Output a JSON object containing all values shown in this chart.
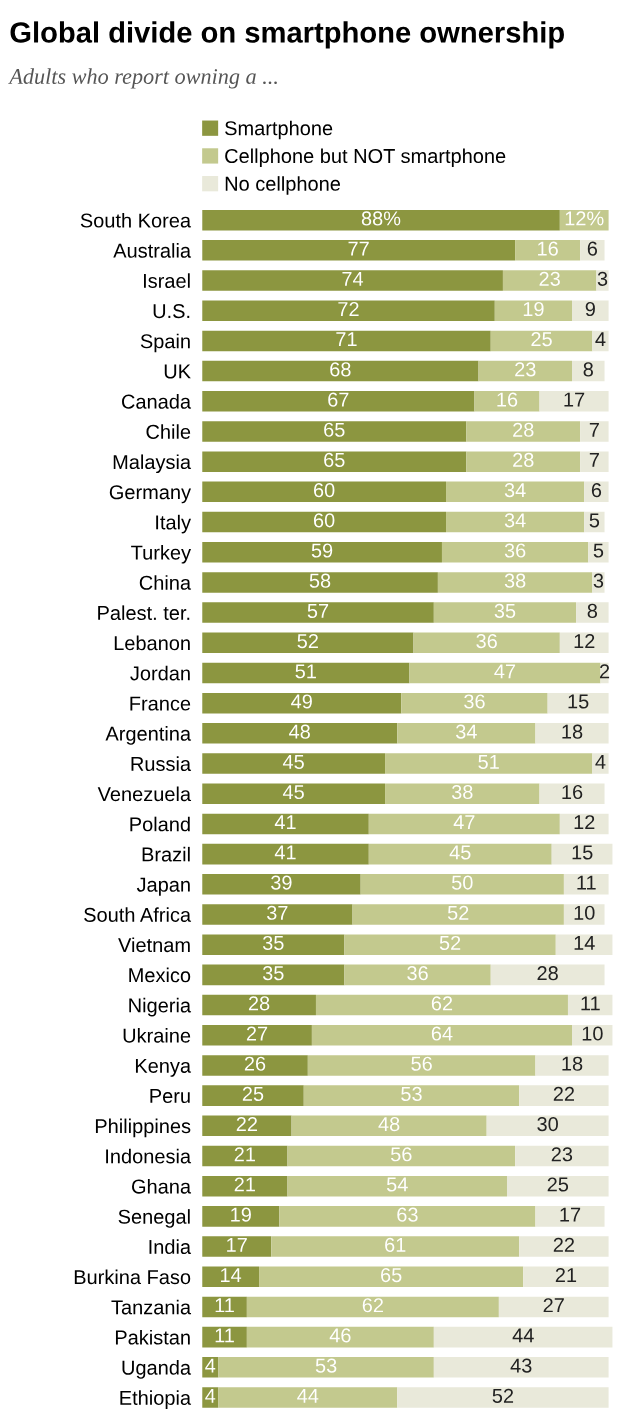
{
  "chart_data": {
    "type": "bar",
    "orientation": "horizontal",
    "stacked": true,
    "title": "Global divide on smartphone ownership",
    "subtitle": "Adults who report owning a ...",
    "categories": [
      "South Korea",
      "Australia",
      "Israel",
      "U.S.",
      "Spain",
      "UK",
      "Canada",
      "Chile",
      "Malaysia",
      "Germany",
      "Italy",
      "Turkey",
      "China",
      "Palest. ter.",
      "Lebanon",
      "Jordan",
      "France",
      "Argentina",
      "Russia",
      "Venezuela",
      "Poland",
      "Brazil",
      "Japan",
      "South Africa",
      "Vietnam",
      "Mexico",
      "Nigeria",
      "Ukraine",
      "Kenya",
      "Peru",
      "Philippines",
      "Indonesia",
      "Ghana",
      "Senegal",
      "India",
      "Burkina Faso",
      "Tanzania",
      "Pakistan",
      "Uganda",
      "Ethiopia"
    ],
    "series": [
      {
        "name": "Smartphone",
        "color": "#8c9640",
        "values": [
          88,
          77,
          74,
          72,
          71,
          68,
          67,
          65,
          65,
          60,
          60,
          59,
          58,
          57,
          52,
          51,
          49,
          48,
          45,
          45,
          41,
          41,
          39,
          37,
          35,
          35,
          28,
          27,
          26,
          25,
          22,
          21,
          21,
          19,
          17,
          14,
          11,
          11,
          4,
          4
        ],
        "value_labels": [
          "88%",
          "77",
          "74",
          "72",
          "71",
          "68",
          "67",
          "65",
          "65",
          "60",
          "60",
          "59",
          "58",
          "57",
          "52",
          "51",
          "49",
          "48",
          "45",
          "45",
          "41",
          "41",
          "39",
          "37",
          "35",
          "35",
          "28",
          "27",
          "26",
          "25",
          "22",
          "21",
          "21",
          "19",
          "17",
          "14",
          "11",
          "11",
          "4",
          "4"
        ]
      },
      {
        "name": "Cellphone but NOT smartphone",
        "color": "#c3c98e",
        "values": [
          12,
          16,
          23,
          19,
          25,
          23,
          16,
          28,
          28,
          34,
          34,
          36,
          38,
          35,
          36,
          47,
          36,
          34,
          51,
          38,
          47,
          45,
          50,
          52,
          52,
          36,
          62,
          64,
          56,
          53,
          48,
          56,
          54,
          63,
          61,
          65,
          62,
          46,
          53,
          44
        ],
        "value_labels": [
          "12%",
          "16",
          "23",
          "19",
          "25",
          "23",
          "16",
          "28",
          "28",
          "34",
          "34",
          "36",
          "38",
          "35",
          "36",
          "47",
          "36",
          "34",
          "51",
          "38",
          "47",
          "45",
          "50",
          "52",
          "52",
          "36",
          "62",
          "64",
          "56",
          "53",
          "48",
          "56",
          "54",
          "63",
          "61",
          "65",
          "62",
          "46",
          "53",
          "44"
        ]
      },
      {
        "name": "No cellphone",
        "color": "#e9e9da",
        "values": [
          0,
          6,
          3,
          9,
          4,
          8,
          17,
          7,
          7,
          6,
          5,
          5,
          3,
          8,
          12,
          2,
          15,
          18,
          4,
          16,
          12,
          15,
          11,
          10,
          14,
          28,
          11,
          10,
          18,
          22,
          30,
          23,
          25,
          17,
          22,
          21,
          27,
          44,
          43,
          52
        ],
        "value_labels": [
          null,
          "6",
          "3",
          "9",
          "4",
          "8",
          "17",
          "7",
          "7",
          "6",
          "5",
          "5",
          "3",
          "8",
          "12",
          "2",
          "15",
          "18",
          "4",
          "16",
          "12",
          "15",
          "11",
          "10",
          "14",
          "28",
          "11",
          "10",
          "18",
          "22",
          "30",
          "23",
          "25",
          "17",
          "22",
          "21",
          "27",
          "44",
          "43",
          "52"
        ]
      }
    ],
    "legend": "top",
    "grid": false,
    "tick_labels": "y"
  }
}
